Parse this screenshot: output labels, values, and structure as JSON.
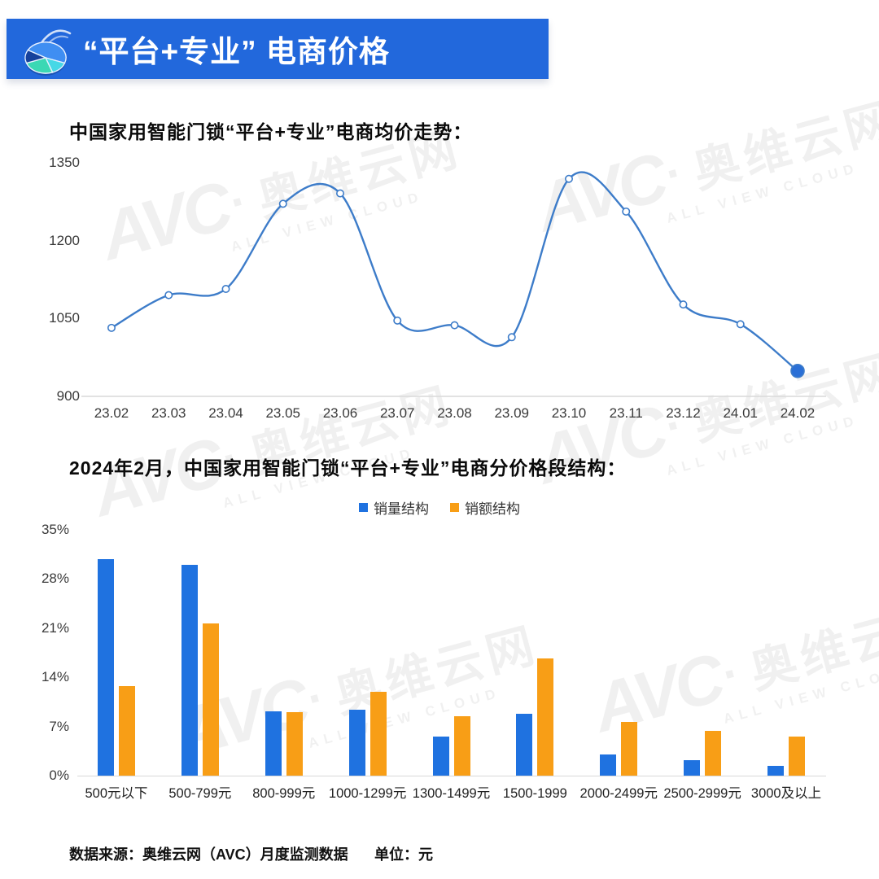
{
  "colors": {
    "banner_bg": "#2268dc",
    "line": "#3d7cc9",
    "bar_blue": "#1f72e0",
    "bar_orange": "#f89e16"
  },
  "banner": {
    "title": "“平台+专业” 电商价格",
    "icon": "pie-chart"
  },
  "chart_data": [
    {
      "type": "line",
      "title": "中国家用智能门锁“平台+专业”电商均价走势：",
      "x": [
        "23.02",
        "23.03",
        "23.04",
        "23.05",
        "23.06",
        "23.07",
        "23.08",
        "23.09",
        "23.10",
        "23.11",
        "23.12",
        "24.01",
        "24.02"
      ],
      "values": [
        1032,
        1095,
        1107,
        1271,
        1291,
        1046,
        1037,
        1014,
        1319,
        1256,
        1077,
        1039,
        949
      ],
      "ylabel": "",
      "xlabel": "",
      "ylim": [
        900,
        1350
      ],
      "yticks": [
        900,
        1050,
        1200,
        1350
      ],
      "grid": false,
      "smooth": true,
      "last_point_emphasized": true
    },
    {
      "type": "bar",
      "title": "2024年2月，中国家用智能门锁“平台+专业”电商分价格段结构：",
      "categories": [
        "500元以下",
        "500-799元",
        "800-999元",
        "1000-1299元",
        "1300-1499元",
        "1500-1999",
        "2000-2499元",
        "2500-2999元",
        "3000及以上"
      ],
      "series": [
        {
          "name": "销量结构",
          "color": "#1f72e0",
          "values": [
            30.8,
            30.0,
            9.1,
            9.4,
            5.6,
            8.8,
            3.0,
            2.2,
            1.4
          ]
        },
        {
          "name": "销额结构",
          "color": "#f89e16",
          "values": [
            12.8,
            21.7,
            9.0,
            11.9,
            8.5,
            16.7,
            7.7,
            6.4,
            5.6
          ]
        }
      ],
      "ylim": [
        0,
        35
      ],
      "yticks": [
        "0%",
        "7%",
        "14%",
        "21%",
        "28%",
        "35%"
      ],
      "legend_position": "top",
      "grid": false
    }
  ],
  "footer": {
    "source": "数据来源：奥维云网（AVC）月度监测数据",
    "unit": "单位：元"
  },
  "watermark": {
    "logo": "AVC",
    "dot": "·",
    "cn": "奥维云网",
    "en": "ALL VIEW CLOUD"
  }
}
